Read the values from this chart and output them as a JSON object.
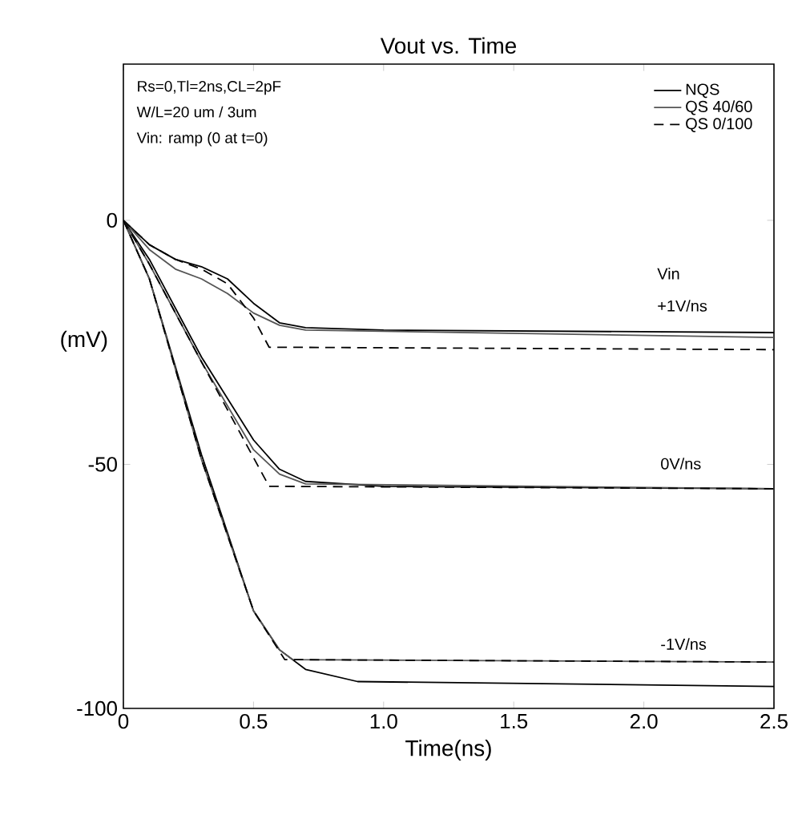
{
  "chart_data": {
    "type": "line",
    "title": "Vout vs. Time",
    "xlabel": "Time(ns)",
    "ylabel": "(mV)",
    "xlim": [
      0,
      2.5
    ],
    "ylim": [
      -100,
      32
    ],
    "xticks": [
      0,
      0.5,
      {
        "value": 1,
        "label": "1.0"
      },
      1.5,
      {
        "value": 2,
        "label": "2.0"
      },
      2.5
    ],
    "yticks": [
      -100,
      -50,
      0
    ],
    "legend": "top right",
    "annotations": [
      "Rs=0,Tl=2ns,CL=2pF",
      "W/L=20 um / 3um",
      "Vin: ramp (0 at t=0)",
      "Vin",
      "+1V/ns",
      "0V/ns",
      "-1V/ns"
    ],
    "series": [
      {
        "name": "NQS",
        "color": "#000000",
        "line_style": "solid",
        "x": [
          0,
          0.1,
          0.2,
          0.3,
          0.4,
          0.5,
          0.6,
          0.7,
          1.0,
          2.5
        ],
        "values": [
          0,
          -5,
          -8,
          -9.5,
          -12,
          -17,
          -21,
          -22,
          -22.5,
          -23
        ]
      },
      {
        "name": "QS 40/60",
        "color": "#555555",
        "line_style": "solid",
        "x": [
          0,
          0.1,
          0.2,
          0.3,
          0.4,
          0.5,
          0.6,
          0.7,
          2.5
        ],
        "values": [
          0,
          -6,
          -10,
          -12,
          -15,
          -19,
          -21.5,
          -22.5,
          -24
        ]
      },
      {
        "name": "QS 0/100",
        "color": "#000000",
        "line_style": "dashed",
        "x": [
          0,
          0.1,
          0.2,
          0.3,
          0.4,
          0.5,
          0.56,
          2.5
        ],
        "values": [
          0,
          -5,
          -8,
          -10,
          -13,
          -20,
          -26,
          -26.5
        ]
      },
      {
        "color": "#000000",
        "line_style": "solid",
        "x": [
          0,
          0.1,
          0.3,
          0.5,
          0.6,
          0.7,
          1.0,
          2.5
        ],
        "values": [
          0,
          -8,
          -28,
          -45,
          -51,
          -53.5,
          -54.5,
          -55
        ]
      },
      {
        "color": "#555555",
        "line_style": "solid",
        "x": [
          0,
          0.1,
          0.3,
          0.5,
          0.6,
          0.7,
          2.5
        ],
        "values": [
          0,
          -9,
          -29,
          -47,
          -52,
          -54,
          -55
        ]
      },
      {
        "color": "#000000",
        "line_style": "dashed",
        "x": [
          0,
          0.1,
          0.3,
          0.56,
          2.5
        ],
        "values": [
          0,
          -9,
          -29,
          -54.5,
          -55
        ]
      },
      {
        "color": "#000000",
        "line_style": "solid",
        "x": [
          0,
          0.1,
          0.3,
          0.5,
          0.6,
          0.7,
          0.9,
          2.5
        ],
        "values": [
          0,
          -12,
          -48,
          -80,
          -88,
          -92,
          -94.5,
          -95.5
        ]
      },
      {
        "color": "#555555",
        "line_style": "solid",
        "x": [
          0,
          0.1,
          0.3,
          0.5,
          0.6,
          0.65,
          2.5
        ],
        "values": [
          0,
          -12,
          -49,
          -80,
          -88,
          -90,
          -90.5
        ]
      },
      {
        "color": "#000000",
        "line_style": "dashed",
        "x": [
          0,
          0.1,
          0.3,
          0.5,
          0.62,
          2.5
        ],
        "values": [
          0,
          -12,
          -49,
          -80,
          -90,
          -90.5
        ]
      }
    ]
  }
}
